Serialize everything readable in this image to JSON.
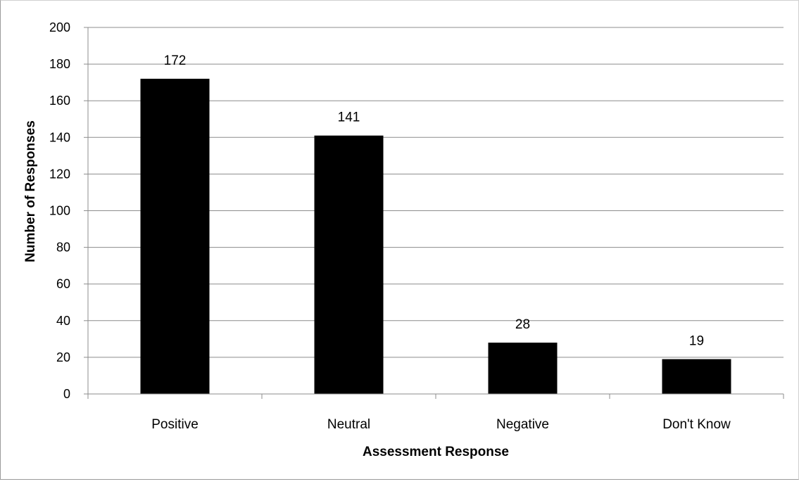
{
  "chart_data": {
    "type": "bar",
    "categories": [
      "Positive",
      "Neutral",
      "Negative",
      "Don't Know"
    ],
    "values": [
      172,
      141,
      28,
      19
    ],
    "data_labels": [
      "172",
      "141",
      "28",
      "19"
    ],
    "title": "",
    "xlabel": "Assessment Response",
    "ylabel": "Number of Responses",
    "ylim": [
      0,
      200
    ],
    "yticks": [
      "0",
      "20",
      "40",
      "60",
      "80",
      "100",
      "120",
      "140",
      "160",
      "180",
      "200"
    ],
    "grid": true,
    "legend": "none",
    "bar_color": "#000000",
    "grid_color": "#8c8c8c"
  }
}
